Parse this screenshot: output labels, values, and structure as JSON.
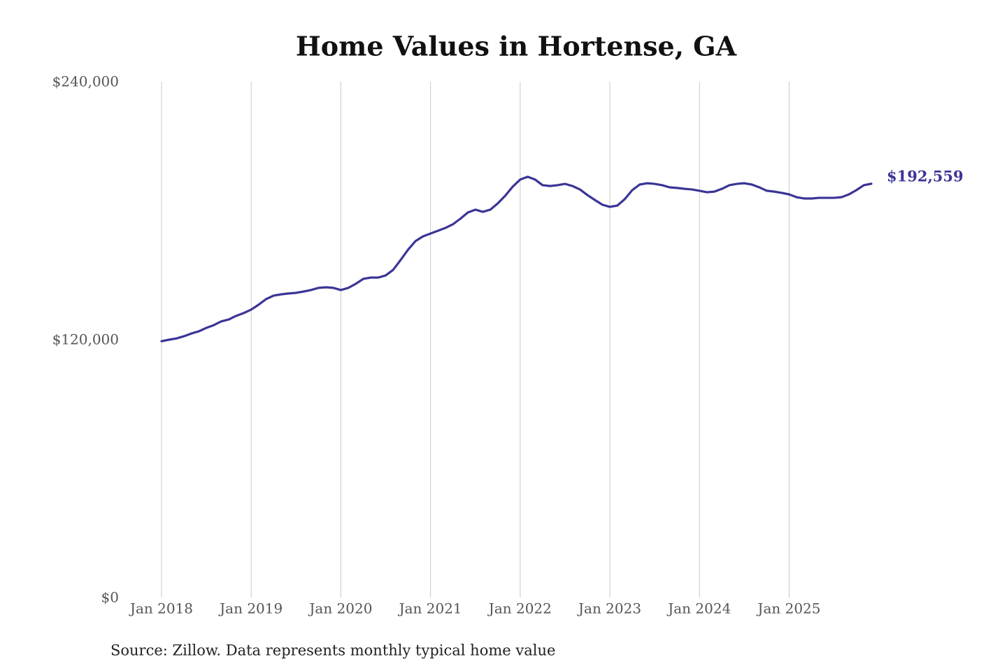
{
  "chart_data": {
    "type": "line",
    "title": "Home Values in Hortense, GA",
    "source": "Source: Zillow. Data represents monthly typical home value",
    "x": [
      "2018-01",
      "2018-02",
      "2018-03",
      "2018-04",
      "2018-05",
      "2018-06",
      "2018-07",
      "2018-08",
      "2018-09",
      "2018-10",
      "2018-11",
      "2018-12",
      "2019-01",
      "2019-02",
      "2019-03",
      "2019-04",
      "2019-05",
      "2019-06",
      "2019-07",
      "2019-08",
      "2019-09",
      "2019-10",
      "2019-11",
      "2019-12",
      "2020-01",
      "2020-02",
      "2020-03",
      "2020-04",
      "2020-05",
      "2020-06",
      "2020-07",
      "2020-08",
      "2020-09",
      "2020-10",
      "2020-11",
      "2020-12",
      "2021-01",
      "2021-02",
      "2021-03",
      "2021-04",
      "2021-05",
      "2021-06",
      "2021-07",
      "2021-08",
      "2021-09",
      "2021-10",
      "2021-11",
      "2021-12",
      "2022-01",
      "2022-02",
      "2022-03",
      "2022-04",
      "2022-05",
      "2022-06",
      "2022-07",
      "2022-08",
      "2022-09",
      "2022-10",
      "2022-11",
      "2022-12",
      "2023-01",
      "2023-02",
      "2023-03",
      "2023-04",
      "2023-05",
      "2023-06",
      "2023-07",
      "2023-08",
      "2023-09",
      "2023-10",
      "2023-11",
      "2023-12",
      "2024-01",
      "2024-02",
      "2024-03",
      "2024-04",
      "2024-05",
      "2024-06",
      "2024-07",
      "2024-08",
      "2024-09",
      "2024-10",
      "2024-11",
      "2024-12",
      "2025-01",
      "2025-02",
      "2025-03",
      "2025-04",
      "2025-05",
      "2025-06",
      "2025-07",
      "2025-08",
      "2025-09",
      "2025-10",
      "2025-11",
      "2025-12"
    ],
    "series": [
      {
        "name": "Typical home value",
        "color": "#3a3596",
        "values": [
          119300,
          120000,
          120600,
          121600,
          122900,
          123900,
          125500,
          126800,
          128500,
          129400,
          131100,
          132400,
          134000,
          136300,
          138900,
          140500,
          141100,
          141500,
          141800,
          142400,
          143100,
          144100,
          144400,
          144100,
          143100,
          144100,
          146000,
          148300,
          148900,
          148900,
          149900,
          152500,
          157100,
          161900,
          165900,
          168100,
          169400,
          170700,
          172000,
          173700,
          176300,
          179200,
          180500,
          179500,
          180500,
          183400,
          187000,
          191200,
          194500,
          195800,
          194500,
          191900,
          191500,
          191900,
          192500,
          191500,
          189900,
          187300,
          185000,
          182800,
          181800,
          182400,
          185400,
          189600,
          192200,
          192800,
          192500,
          191900,
          190900,
          190600,
          190200,
          189900,
          189300,
          188600,
          188900,
          190200,
          191900,
          192500,
          192800,
          192200,
          190900,
          189300,
          188900,
          188300,
          187600,
          186300,
          185700,
          185700,
          186000,
          186000,
          186000,
          186300,
          187600,
          189600,
          191900,
          192559
        ],
        "value_labels": [
          null,
          null,
          null,
          null,
          null,
          null,
          null,
          null,
          null,
          null,
          null,
          null,
          null,
          null,
          null,
          null,
          null,
          null,
          null,
          null,
          null,
          null,
          null,
          null,
          null,
          null,
          null,
          null,
          null,
          null,
          null,
          null,
          null,
          null,
          null,
          null,
          null,
          null,
          null,
          null,
          null,
          null,
          null,
          null,
          null,
          null,
          null,
          null,
          null,
          null,
          null,
          null,
          null,
          null,
          null,
          null,
          null,
          null,
          null,
          null,
          null,
          null,
          null,
          null,
          null,
          null,
          null,
          null,
          null,
          null,
          null,
          null,
          null,
          null,
          null,
          null,
          null,
          null,
          null,
          null,
          null,
          null,
          null,
          null,
          null,
          null,
          null,
          null,
          null,
          null,
          null,
          null,
          null,
          null,
          null,
          "$192,559"
        ]
      }
    ],
    "xlim": [
      "2018-01",
      "2025-12"
    ],
    "xticks": [
      {
        "value": "2018-01",
        "label": "Jan 2018"
      },
      {
        "value": "2019-01",
        "label": "Jan 2019"
      },
      {
        "value": "2020-01",
        "label": "Jan 2020"
      },
      {
        "value": "2021-01",
        "label": "Jan 2021"
      },
      {
        "value": "2022-01",
        "label": "Jan 2022"
      },
      {
        "value": "2023-01",
        "label": "Jan 2023"
      },
      {
        "value": "2024-01",
        "label": "Jan 2024"
      },
      {
        "value": "2025-01",
        "label": "Jan 2025"
      }
    ],
    "ylim": [
      0,
      240000
    ],
    "yticks": [
      {
        "value": 0,
        "label": "$0"
      },
      {
        "value": 120000,
        "label": "$120,000"
      },
      {
        "value": 240000,
        "label": "$240,000"
      }
    ],
    "grid": "x"
  }
}
